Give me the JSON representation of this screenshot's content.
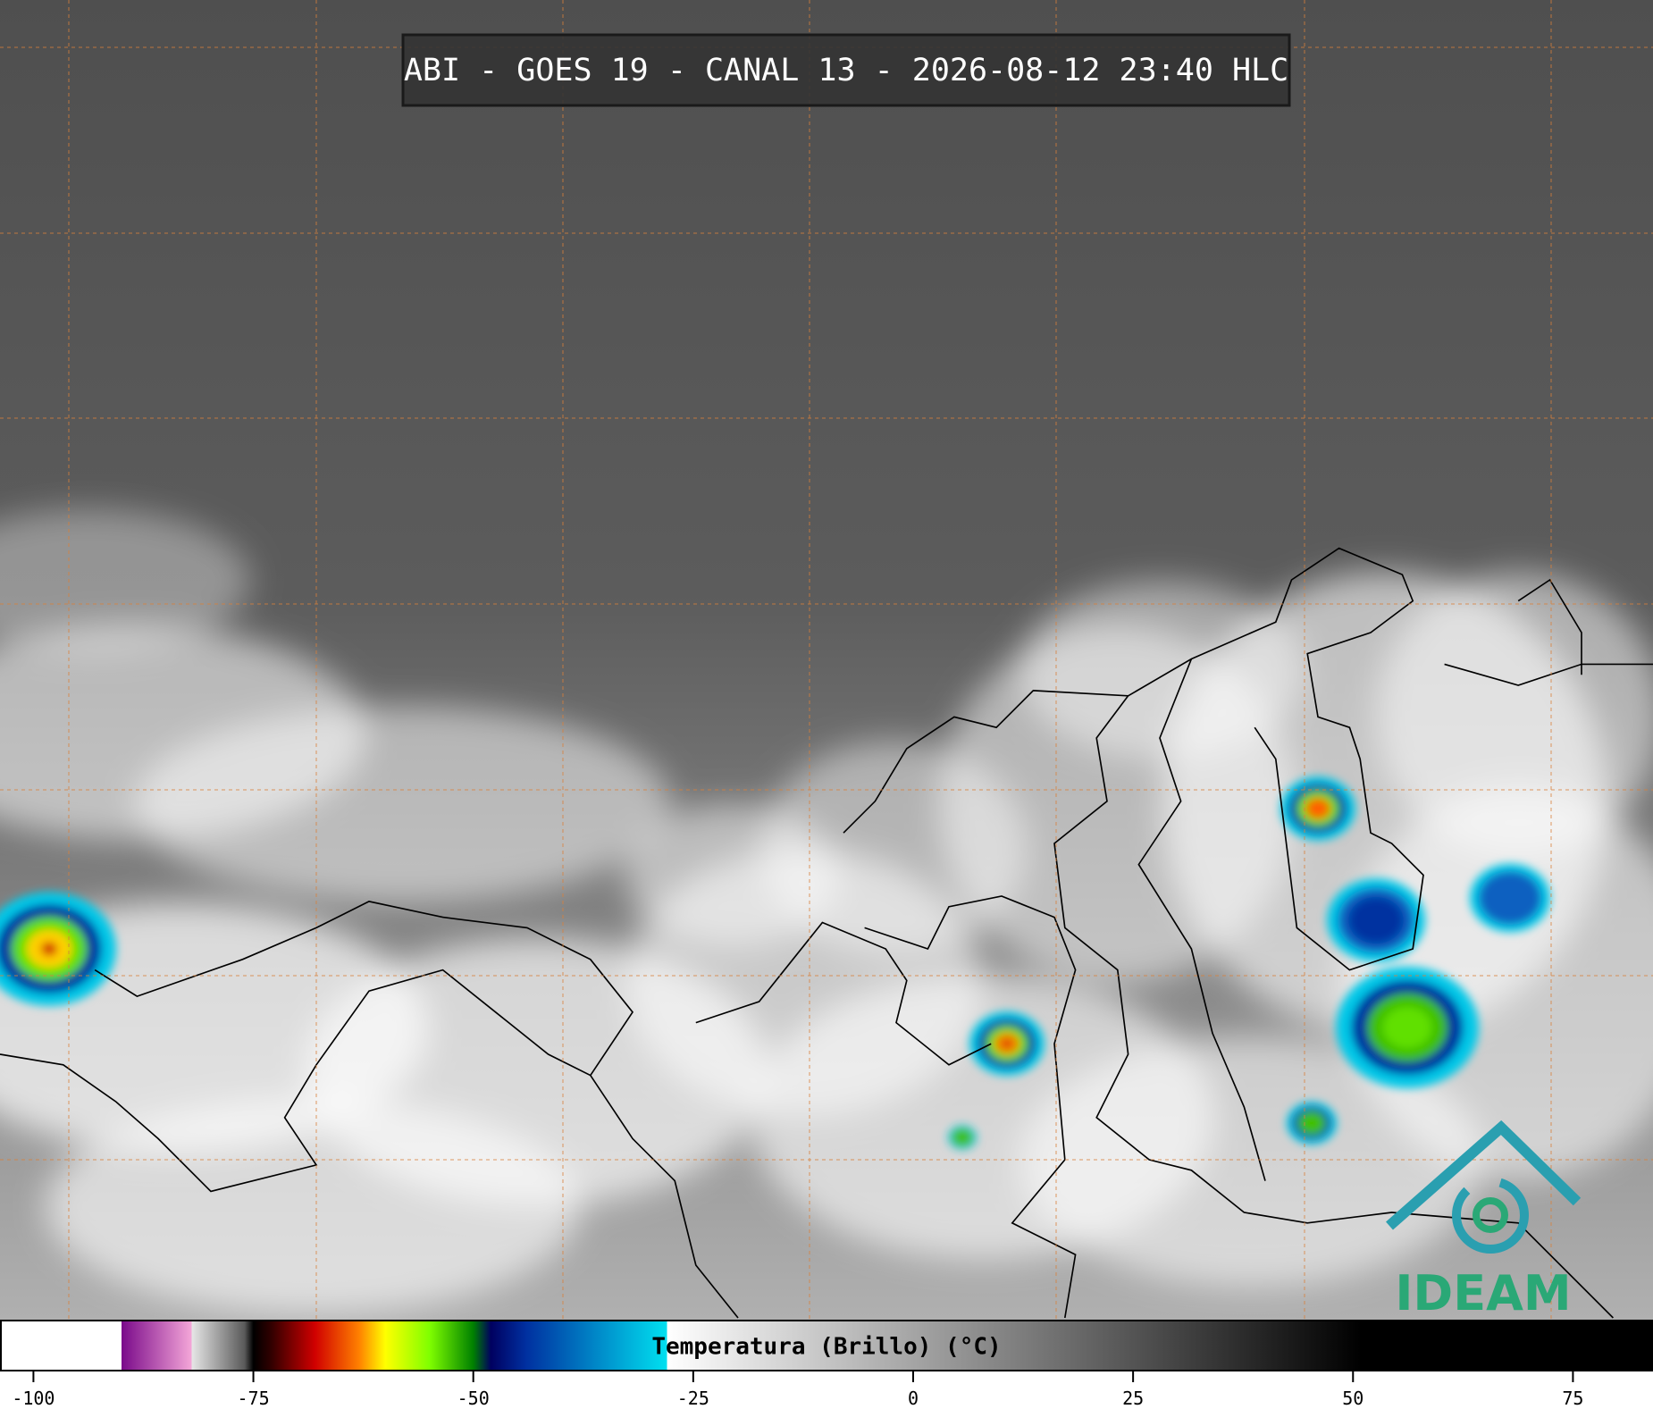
{
  "title": "ABI - GOES 19 - CANAL 13 - 2026-08-12 23:40 HLC",
  "logo": "IDEAM",
  "chart_data": {
    "type": "colorbar",
    "label": "Temperatura (Brillo) (°C)",
    "xlim": [
      -103.8,
      84.1
    ],
    "xticks": [
      -100,
      -75,
      -50,
      -25,
      0,
      25,
      50,
      75
    ],
    "colorscale": [
      {
        "value": -90,
        "color": "#ffffff"
      },
      {
        "value": -90,
        "color": "#7a0a8a"
      },
      {
        "value": -82,
        "color": "#f4a6d8"
      },
      {
        "value": -82,
        "color": "#e6e6e6"
      },
      {
        "value": -76,
        "color": "#5a5a5a"
      },
      {
        "value": -75,
        "color": "#000000"
      },
      {
        "value": -73,
        "color": "#300000"
      },
      {
        "value": -68,
        "color": "#d00000"
      },
      {
        "value": -63,
        "color": "#ff8000"
      },
      {
        "value": -60,
        "color": "#ffff00"
      },
      {
        "value": -55,
        "color": "#80ff00"
      },
      {
        "value": -50,
        "color": "#008000"
      },
      {
        "value": -48,
        "color": "#000060"
      },
      {
        "value": -44,
        "color": "#0030a0"
      },
      {
        "value": -28,
        "color": "#00e0f0"
      },
      {
        "value": -28,
        "color": "#ffffff"
      },
      {
        "value": 51,
        "color": "#000000"
      }
    ]
  }
}
